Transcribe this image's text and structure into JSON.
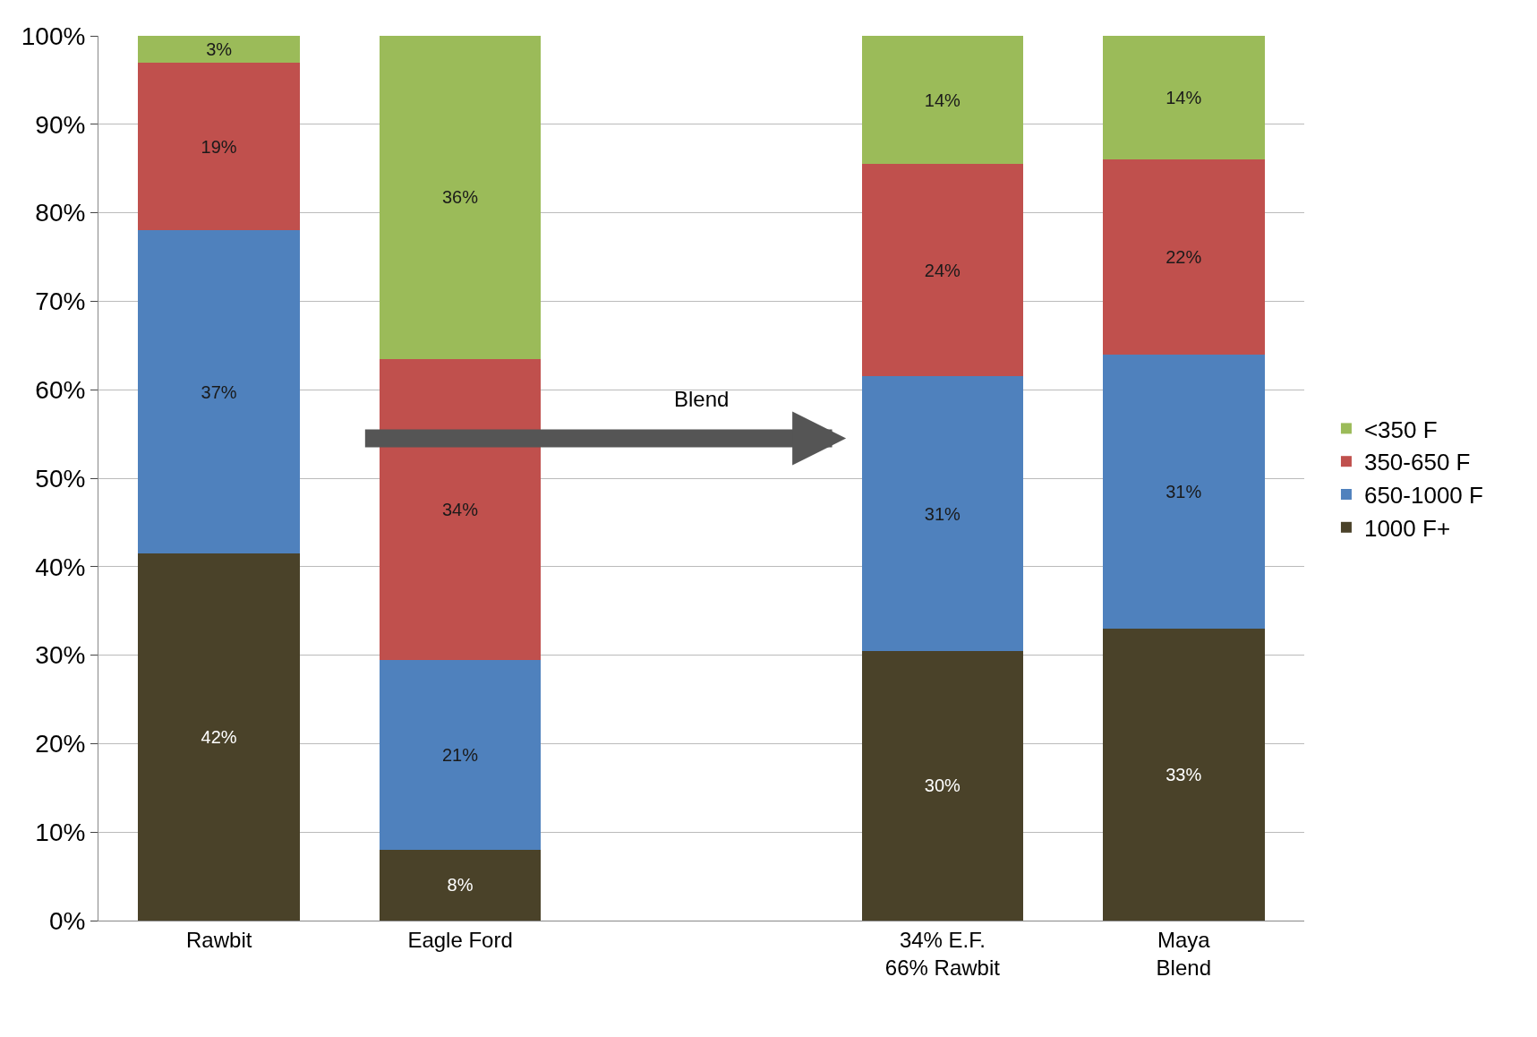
{
  "chart_data": {
    "type": "bar",
    "stacked": true,
    "categories": [
      "Rawbit",
      "Eagle Ford",
      null,
      "34% E.F.\n66% Rawbit",
      "Maya\nBlend"
    ],
    "series": [
      {
        "name": "1000 F+",
        "color": "#4a4229",
        "values": [
          41.5,
          8,
          null,
          30.5,
          33
        ],
        "value_labels": [
          "42%",
          "8%",
          null,
          "30%",
          "33%"
        ]
      },
      {
        "name": "650-1000 F",
        "color": "#4f81bd",
        "values": [
          36.5,
          21.5,
          null,
          31,
          31
        ],
        "value_labels": [
          "37%",
          "21%",
          null,
          "31%",
          "31%"
        ]
      },
      {
        "name": "350-650 F",
        "color": "#c0504d",
        "values": [
          19,
          34,
          null,
          24,
          22
        ],
        "value_labels": [
          "19%",
          "34%",
          null,
          "24%",
          "22%"
        ]
      },
      {
        "name": "<350 F",
        "color": "#9bbb59",
        "values": [
          3,
          36.5,
          null,
          14.5,
          14
        ],
        "value_labels": [
          "3%",
          "36%",
          null,
          "14%",
          "14%"
        ]
      }
    ],
    "ylim": [
      0,
      100
    ],
    "yticks": [
      {
        "value": 0,
        "label": "0%"
      },
      {
        "value": 10,
        "label": "10%"
      },
      {
        "value": 20,
        "label": "20%"
      },
      {
        "value": 30,
        "label": "30%"
      },
      {
        "value": 40,
        "label": "40%"
      },
      {
        "value": 50,
        "label": "50%"
      },
      {
        "value": 60,
        "label": "60%"
      },
      {
        "value": 70,
        "label": "70%"
      },
      {
        "value": 80,
        "label": "80%"
      },
      {
        "value": 90,
        "label": "90%"
      },
      {
        "value": 100,
        "label": "100%"
      }
    ],
    "grid": "y",
    "legend": "right",
    "annotations": [
      "Blend"
    ]
  }
}
